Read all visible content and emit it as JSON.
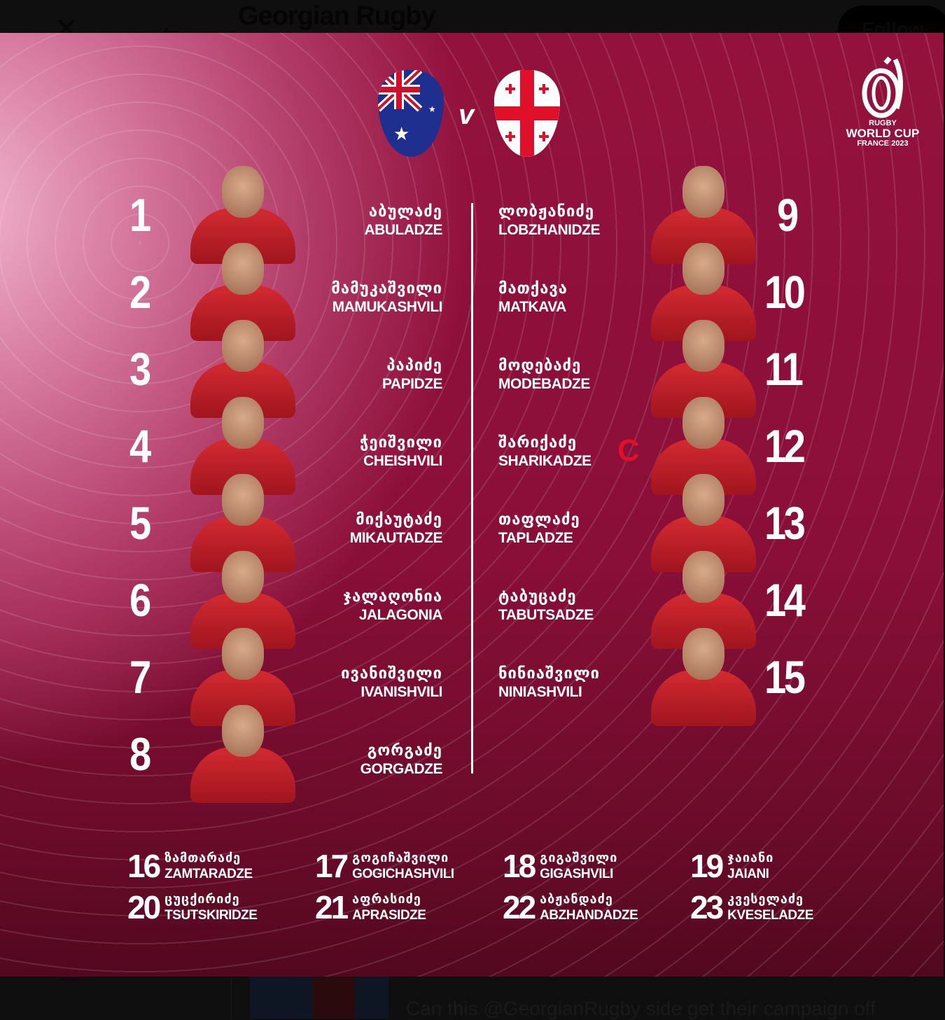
{
  "header": {
    "title": "Georgian Rugby",
    "follow_label": "Follow"
  },
  "tweet": {
    "text": "Can this @GeorgianRugby side get their campaign off"
  },
  "logo": {
    "line1": "RUGBY",
    "line2": "WORLD CUP",
    "line3": "FRANCE 2023"
  },
  "match": {
    "home": "Australia",
    "away": "Georgia",
    "vs": "v"
  },
  "captain_mark": "C",
  "starters_left": [
    {
      "num": "1",
      "geo": "აბულაძე",
      "lat": "ABULADZE"
    },
    {
      "num": "2",
      "geo": "მამუკაშვილი",
      "lat": "MAMUKASHVILI"
    },
    {
      "num": "3",
      "geo": "პაპიძე",
      "lat": "PAPIDZE"
    },
    {
      "num": "4",
      "geo": "ჭეიშვილი",
      "lat": "CHEISHVILI"
    },
    {
      "num": "5",
      "geo": "მიქაუტაძე",
      "lat": "MIKAUTADZE"
    },
    {
      "num": "6",
      "geo": "ჯალაღონია",
      "lat": "JALAGONIA"
    },
    {
      "num": "7",
      "geo": "ივანიშვილი",
      "lat": "IVANISHVILI"
    },
    {
      "num": "8",
      "geo": "გორგაძე",
      "lat": "GORGADZE"
    }
  ],
  "starters_right": [
    {
      "num": "9",
      "geo": "ლობჟანიძე",
      "lat": "LOBZHANIDZE"
    },
    {
      "num": "10",
      "geo": "მათქავა",
      "lat": "MATKAVA"
    },
    {
      "num": "11",
      "geo": "მოდებაძე",
      "lat": "MODEBADZE"
    },
    {
      "num": "12",
      "geo": "შარიქაძე",
      "lat": "SHARIKADZE"
    },
    {
      "num": "13",
      "geo": "თაფლაძე",
      "lat": "TAPLADZE"
    },
    {
      "num": "14",
      "geo": "ტაბუცაძე",
      "lat": "TABUTSADZE"
    },
    {
      "num": "15",
      "geo": "ნინიაშვილი",
      "lat": "NINIASHVILI"
    }
  ],
  "bench": [
    {
      "num": "16",
      "geo": "ზამთარაძე",
      "lat": "ZAMTARADZE"
    },
    {
      "num": "17",
      "geo": "გოგიჩაშვილი",
      "lat": "GOGICHASHVILI"
    },
    {
      "num": "18",
      "geo": "გიგაშვილი",
      "lat": "GIGASHVILI"
    },
    {
      "num": "19",
      "geo": "ჯაიანი",
      "lat": "JAIANI"
    },
    {
      "num": "20",
      "geo": "ცუცქირიძე",
      "lat": "TSUTSKIRIDZE"
    },
    {
      "num": "21",
      "geo": "აფრასიძე",
      "lat": "APRASIDZE"
    },
    {
      "num": "22",
      "geo": "აბჟანდაძე",
      "lat": "ABZHANDADZE"
    },
    {
      "num": "23",
      "geo": "კვესელაძე",
      "lat": "KVESELADZE"
    }
  ],
  "colors": {
    "background": "#0f0f0f",
    "overlay_crimson": "#8a0f38",
    "overlay_pink": "#f0b5cd",
    "captain": "#e0102a",
    "jersey": "#d42a32"
  }
}
